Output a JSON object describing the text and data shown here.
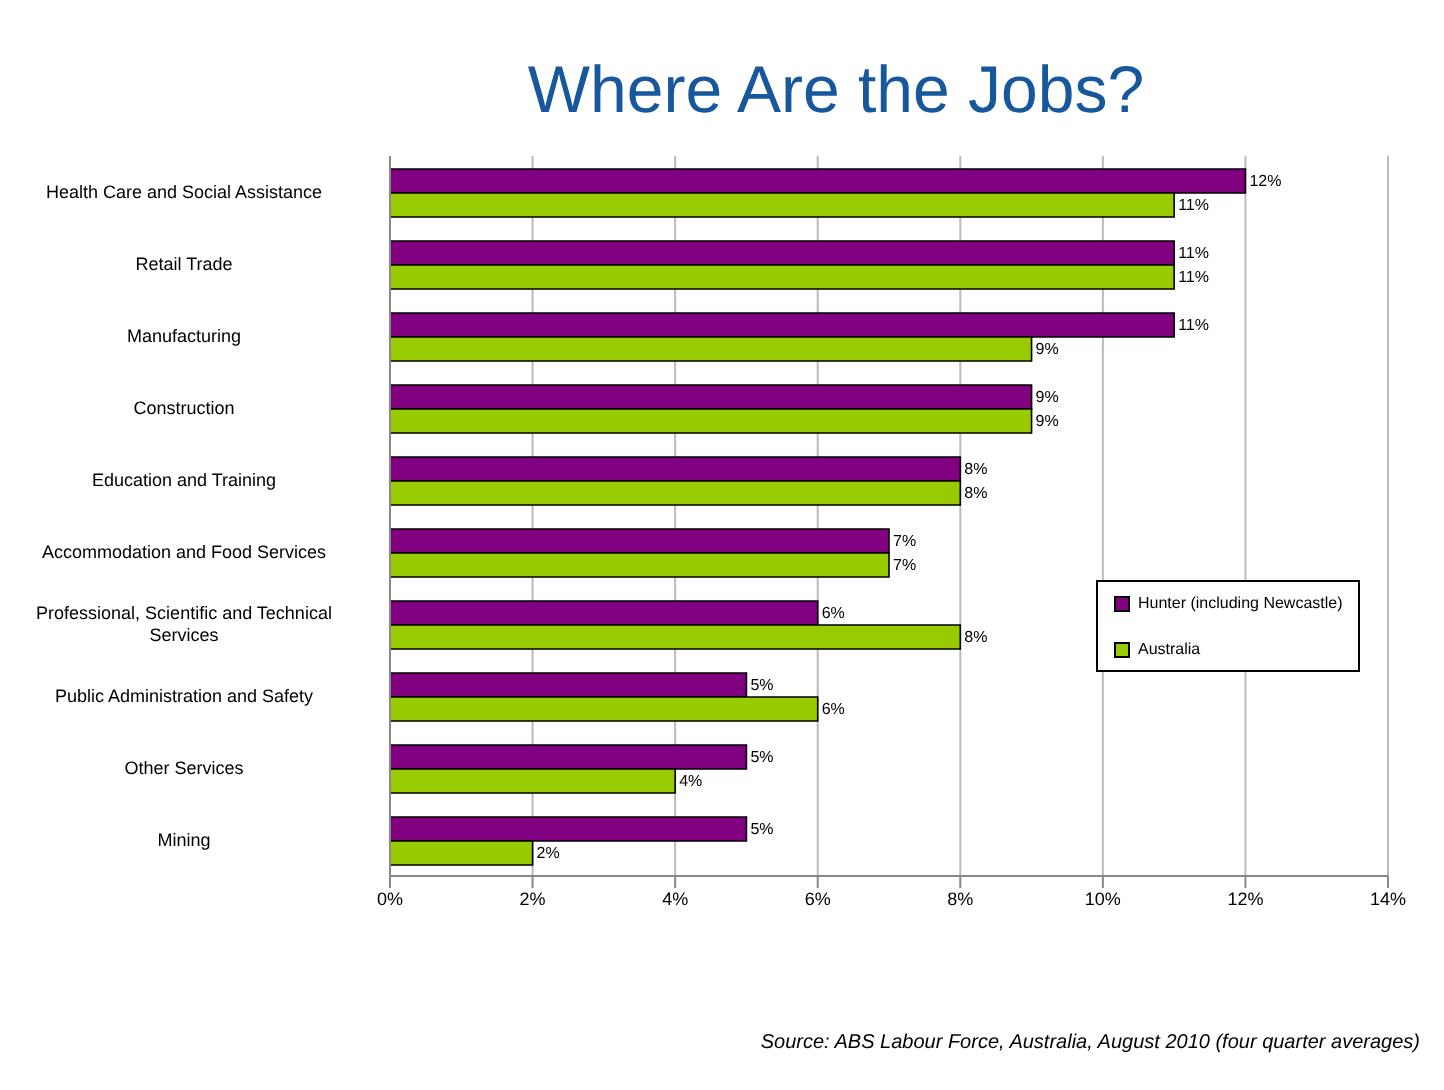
{
  "chart_data": {
    "type": "bar",
    "orientation": "horizontal",
    "title": "Where Are the Jobs?",
    "categories": [
      "Health Care and Social Assistance",
      "Retail Trade",
      "Manufacturing",
      "Construction",
      "Education and Training",
      "Accommodation and Food Services",
      "Professional, Scientific and Technical Services",
      "Public Administration and Safety",
      "Other Services",
      "Mining"
    ],
    "series": [
      {
        "name": "Hunter (including Newcastle)",
        "color": "#800080",
        "values": [
          12,
          11,
          11,
          9,
          8,
          7,
          6,
          5,
          5,
          5
        ],
        "value_labels": [
          "12%",
          "11%",
          "11%",
          "9%",
          "8%",
          "7%",
          "6%",
          "5%",
          "5%",
          "5%"
        ]
      },
      {
        "name": "Australia",
        "color": "#99cc00",
        "values": [
          11,
          11,
          9,
          9,
          8,
          7,
          8,
          6,
          4,
          2
        ],
        "value_labels": [
          "11%",
          "11%",
          "9%",
          "9%",
          "8%",
          "7%",
          "8%",
          "6%",
          "4%",
          "2%"
        ]
      }
    ],
    "xlim": [
      0,
      14
    ],
    "xticks": [
      {
        "value": 0,
        "label": "0%"
      },
      {
        "value": 2,
        "label": "2%"
      },
      {
        "value": 4,
        "label": "4%"
      },
      {
        "value": 6,
        "label": "6%"
      },
      {
        "value": 8,
        "label": "8%"
      },
      {
        "value": 10,
        "label": "10%"
      },
      {
        "value": 12,
        "label": "12%"
      },
      {
        "value": 14,
        "label": "14%"
      }
    ],
    "grid": "x",
    "legend": "right",
    "annotations": [
      "Source: ABS Labour Force, Australia, August 2010 (four quarter averages)"
    ]
  }
}
